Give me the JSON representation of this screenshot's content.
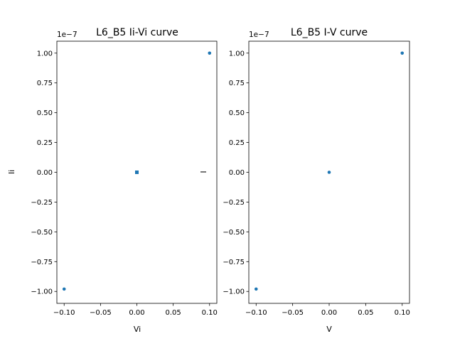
{
  "chart_data": [
    {
      "type": "scatter",
      "title": "L6_B5 Ii-Vi curve",
      "xlabel": "Vi",
      "ylabel": "Ii",
      "y_offset_label": "1e−7",
      "xlim": [
        -0.11,
        0.11
      ],
      "ylim": [
        -1.1e-07,
        1.1e-07
      ],
      "xticks": [
        -0.1,
        -0.05,
        0.0,
        0.05,
        0.1
      ],
      "xtick_labels": [
        "−0.10",
        "−0.05",
        "0.00",
        "0.05",
        "0.10"
      ],
      "yticks": [
        -1e-07,
        -7.5e-08,
        -5e-08,
        -2.5e-08,
        0,
        2.5e-08,
        5e-08,
        7.5e-08,
        1e-07
      ],
      "ytick_labels": [
        "−1.00",
        "−0.75",
        "−0.50",
        "−0.25",
        "0.00",
        "0.25",
        "0.50",
        "0.75",
        "1.00"
      ],
      "marker_color": "#1f77b4",
      "marker_shape": "square",
      "points": [
        {
          "x": -0.1,
          "y": -9.8e-08
        },
        {
          "x": 0.0,
          "y": 0.0
        },
        {
          "x": 0.1,
          "y": 1e-07
        }
      ]
    },
    {
      "type": "scatter",
      "title": "L6_B5 I-V curve",
      "xlabel": "V",
      "ylabel": "I",
      "y_offset_label": "1e−7",
      "xlim": [
        -0.11,
        0.11
      ],
      "ylim": [
        -1.1e-07,
        1.1e-07
      ],
      "xticks": [
        -0.1,
        -0.05,
        0.0,
        0.05,
        0.1
      ],
      "xtick_labels": [
        "−0.10",
        "−0.05",
        "0.00",
        "0.05",
        "0.10"
      ],
      "yticks": [
        -1e-07,
        -7.5e-08,
        -5e-08,
        -2.5e-08,
        0,
        2.5e-08,
        5e-08,
        7.5e-08,
        1e-07
      ],
      "ytick_labels": [
        "−1.00",
        "−0.75",
        "−0.50",
        "−0.25",
        "0.00",
        "0.25",
        "0.50",
        "0.75",
        "1.00"
      ],
      "marker_color": "#1f77b4",
      "marker_shape": "circle",
      "points": [
        {
          "x": -0.1,
          "y": -9.8e-08
        },
        {
          "x": 0.0,
          "y": 0.0
        },
        {
          "x": 0.1,
          "y": 1e-07
        }
      ]
    }
  ]
}
